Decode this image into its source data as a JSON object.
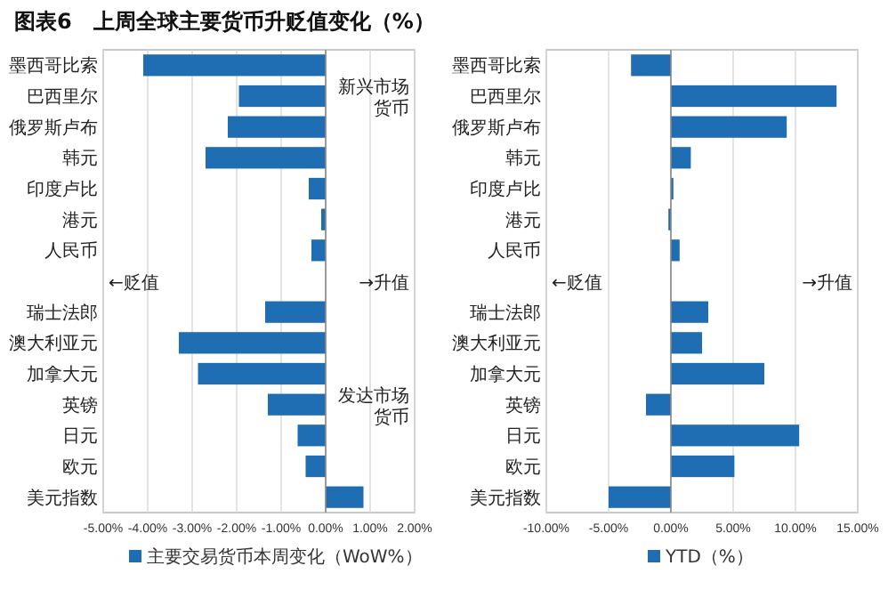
{
  "chart_data": [
    {
      "type": "bar",
      "orientation": "horizontal",
      "title": "图表6　上周全球主要货币升贬值变化（%）",
      "categories": [
        "墨西哥比索",
        "巴西里尔",
        "俄罗斯卢布",
        "韩元",
        "印度卢比",
        "港元",
        "人民币",
        null,
        "瑞士法郎",
        "澳大利亚元",
        "加拿大元",
        "英镑",
        "日元",
        "欧元",
        "美元指数"
      ],
      "series": [
        {
          "name": "主要交易货币本周变化（WoW%）",
          "color": "#1f6db3",
          "values": [
            -4.1,
            -1.95,
            -2.2,
            -2.7,
            -0.38,
            -0.1,
            -0.32,
            null,
            -1.36,
            -3.3,
            -2.87,
            -1.3,
            -0.63,
            -0.45,
            0.85
          ]
        }
      ],
      "xlim": [
        -5,
        2
      ],
      "xticks": [
        {
          "value": -5,
          "label": "-5.00%"
        },
        {
          "value": -4,
          "label": "-4.00%"
        },
        {
          "value": -3,
          "label": "-3.00%"
        },
        {
          "value": -2,
          "label": "-2.00%"
        },
        {
          "value": -1,
          "label": "-1.00%"
        },
        {
          "value": 0,
          "label": "0.00%"
        },
        {
          "value": 1,
          "label": "1.00%"
        },
        {
          "value": 2,
          "label": "2.00%"
        }
      ],
      "grid": "x",
      "legend": "bottom",
      "annotations": [
        "新兴市场货币",
        "发达市场货币",
        "←贬值",
        "→升值"
      ]
    },
    {
      "type": "bar",
      "orientation": "horizontal",
      "categories": [
        "墨西哥比索",
        "巴西里尔",
        "俄罗斯卢布",
        "韩元",
        "印度卢比",
        "港元",
        "人民币",
        null,
        "瑞士法郎",
        "澳大利亚元",
        "加拿大元",
        "英镑",
        "日元",
        "欧元",
        "美元指数"
      ],
      "series": [
        {
          "name": "YTD（%）",
          "color": "#1f6db3",
          "values": [
            -3.2,
            13.3,
            9.3,
            1.6,
            0.2,
            -0.2,
            0.7,
            null,
            3.0,
            2.5,
            7.5,
            -2.0,
            10.3,
            5.1,
            -5.0
          ]
        }
      ],
      "xlim": [
        -10,
        15
      ],
      "xticks": [
        {
          "value": -10,
          "label": "-10.00%"
        },
        {
          "value": -5,
          "label": "-5.00%"
        },
        {
          "value": 0,
          "label": "0.00%"
        },
        {
          "value": 5,
          "label": "5.00%"
        },
        {
          "value": 10,
          "label": "10.00%"
        },
        {
          "value": 15,
          "label": "15.00%"
        }
      ],
      "grid": "x",
      "legend": "bottom",
      "annotations": [
        "←贬值",
        "→升值"
      ]
    }
  ]
}
